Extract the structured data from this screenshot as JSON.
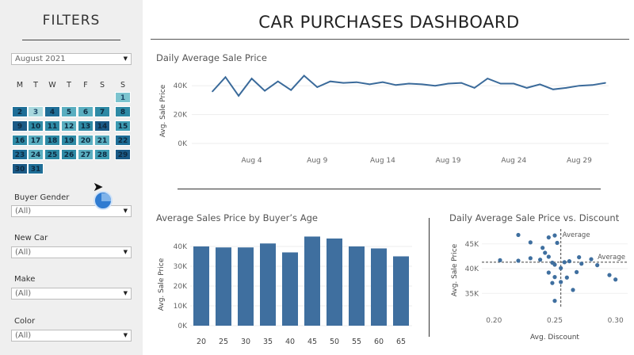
{
  "sidebar": {
    "title": "FILTERS",
    "month_select": {
      "value": "August 2021"
    },
    "weekdays": [
      "M",
      "T",
      "W",
      "T",
      "F",
      "S",
      "S"
    ],
    "days": [
      {
        "d": "1"
      },
      {
        "d": "2"
      },
      {
        "d": "3"
      },
      {
        "d": "4"
      },
      {
        "d": "5"
      },
      {
        "d": "6"
      },
      {
        "d": "7"
      },
      {
        "d": "8"
      },
      {
        "d": "9"
      },
      {
        "d": "10"
      },
      {
        "d": "11"
      },
      {
        "d": "12"
      },
      {
        "d": "13"
      },
      {
        "d": "14"
      },
      {
        "d": "15"
      },
      {
        "d": "16"
      },
      {
        "d": "17"
      },
      {
        "d": "18"
      },
      {
        "d": "19"
      },
      {
        "d": "20"
      },
      {
        "d": "21"
      },
      {
        "d": "22"
      },
      {
        "d": "23"
      },
      {
        "d": "24"
      },
      {
        "d": "25"
      },
      {
        "d": "26"
      },
      {
        "d": "27"
      },
      {
        "d": "28"
      },
      {
        "d": "29"
      },
      {
        "d": "30"
      },
      {
        "d": "31"
      }
    ],
    "filters": [
      {
        "label": "Buyer Gender",
        "value": "(All)"
      },
      {
        "label": "New Car",
        "value": "(All)"
      },
      {
        "label": "Make",
        "value": "(All)"
      },
      {
        "label": "Color",
        "value": "(All)"
      }
    ]
  },
  "header": {
    "title": "CAR PURCHASES DASHBOARD"
  },
  "chart_data": [
    {
      "type": "line",
      "title": "Daily Average Sale Price",
      "ylabel": "Avg. Sale Price",
      "y_ticks": [
        "0K",
        "20K",
        "40K"
      ],
      "x_ticks": [
        "Aug 4",
        "Aug 9",
        "Aug 14",
        "Aug 19",
        "Aug 24",
        "Aug 29"
      ],
      "ylim": [
        0,
        50000
      ],
      "x": [
        1,
        2,
        3,
        4,
        5,
        6,
        7,
        8,
        9,
        10,
        11,
        12,
        13,
        14,
        15,
        16,
        17,
        18,
        19,
        20,
        21,
        22,
        23,
        24,
        25,
        26,
        27,
        28,
        29,
        30,
        31
      ],
      "values": [
        36000,
        46000,
        33000,
        45000,
        36500,
        43000,
        37000,
        47000,
        39000,
        43000,
        42000,
        42500,
        41000,
        42500,
        40500,
        41500,
        41000,
        40000,
        41500,
        42000,
        38500,
        45000,
        41500,
        41500,
        38500,
        41000,
        37500,
        38500,
        40000,
        40500,
        42000
      ]
    },
    {
      "type": "bar",
      "title": "Average Sales Price by Buyer’s Age",
      "ylabel": "Avg. Sale Price",
      "y_ticks": [
        "0K",
        "10K",
        "20K",
        "30K",
        "40K"
      ],
      "ylim": [
        0,
        42000
      ],
      "categories": [
        "20",
        "25",
        "30",
        "35",
        "40",
        "45",
        "50",
        "55",
        "60",
        "65"
      ],
      "values": [
        40000,
        39500,
        39500,
        41500,
        37000,
        45000,
        44000,
        40000,
        39000,
        35000
      ]
    },
    {
      "type": "scatter",
      "title": "Daily Average Sale Price vs. Discount",
      "xlabel": "Avg. Discount",
      "ylabel": "Avg. Sale Price",
      "x_ticks": [
        "0.20",
        "0.25",
        "0.30"
      ],
      "y_ticks": [
        "35K",
        "40K",
        "45K"
      ],
      "xlim": [
        0.19,
        0.31
      ],
      "ylim": [
        32000,
        48000
      ],
      "ref_x_label": "Average",
      "ref_y_label": "Average",
      "ref_x": 0.255,
      "ref_y": 41300,
      "points": [
        [
          0.22,
          46800
        ],
        [
          0.23,
          45300
        ],
        [
          0.245,
          46300
        ],
        [
          0.25,
          46700
        ],
        [
          0.252,
          45200
        ],
        [
          0.24,
          44200
        ],
        [
          0.242,
          43200
        ],
        [
          0.245,
          42400
        ],
        [
          0.23,
          42100
        ],
        [
          0.238,
          41800
        ],
        [
          0.22,
          41600
        ],
        [
          0.205,
          41700
        ],
        [
          0.248,
          41200
        ],
        [
          0.25,
          40800
        ],
        [
          0.255,
          40100
        ],
        [
          0.258,
          41300
        ],
        [
          0.262,
          41500
        ],
        [
          0.27,
          42300
        ],
        [
          0.28,
          41900
        ],
        [
          0.285,
          40700
        ],
        [
          0.268,
          39300
        ],
        [
          0.245,
          39200
        ],
        [
          0.25,
          38300
        ],
        [
          0.248,
          37100
        ],
        [
          0.255,
          37300
        ],
        [
          0.26,
          38200
        ],
        [
          0.295,
          38700
        ],
        [
          0.3,
          37800
        ],
        [
          0.265,
          35700
        ],
        [
          0.25,
          33500
        ],
        [
          0.272,
          41000
        ]
      ]
    }
  ],
  "colors": {
    "primary": "#3f6f9f",
    "line": "#3a6a9a",
    "bar": "#3f6f9f",
    "scatter": "#3f6f9f"
  }
}
